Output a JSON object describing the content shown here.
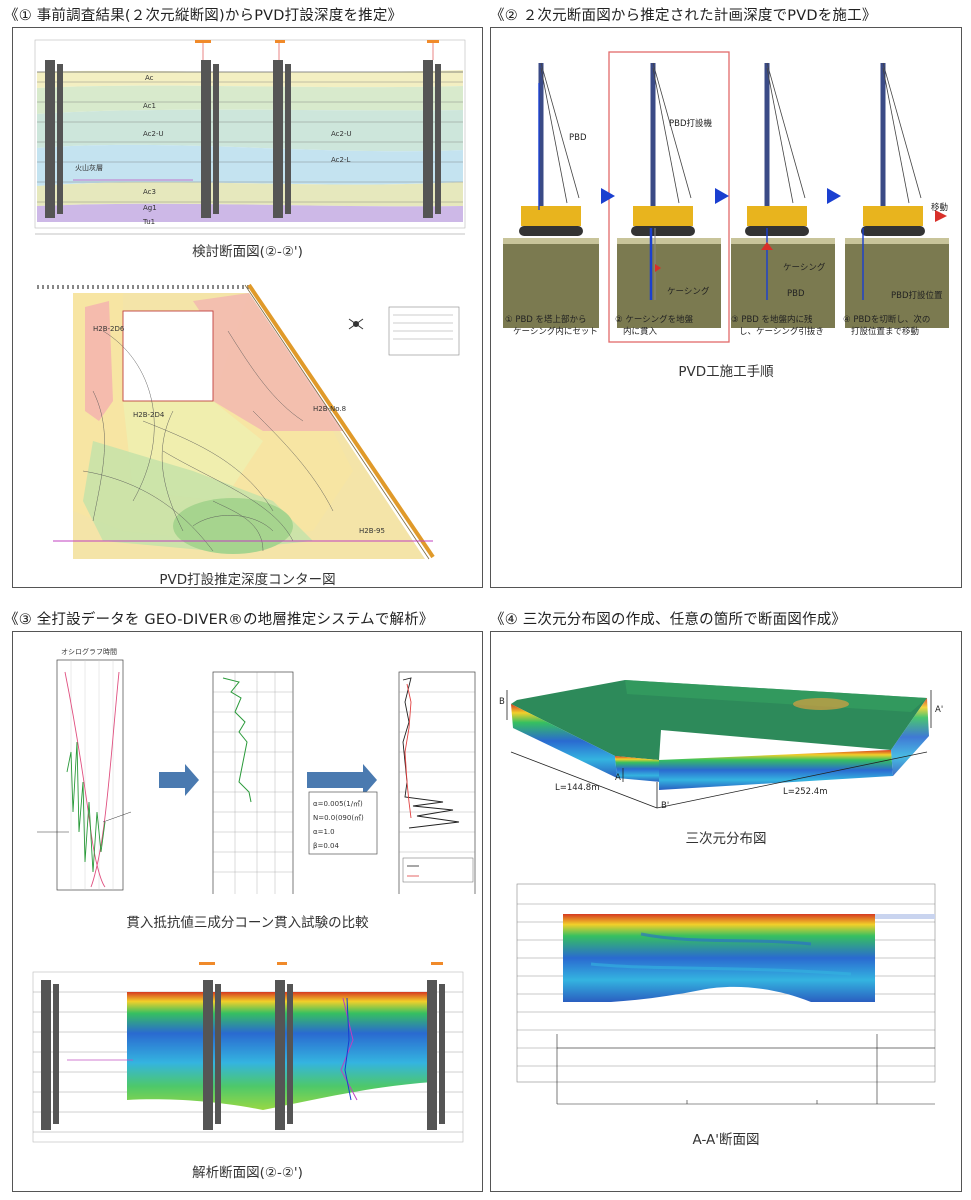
{
  "sections": [
    {
      "heading": "《① 事前調査結果(２次元縦断図)からPVD打設深度を推定》",
      "captions": [
        "検討断面図(②-②')",
        "PVD打設推定深度コンター図"
      ]
    },
    {
      "heading": "《② ２次元断面図から推定された計画深度でPVDを施工》",
      "captions": [
        "PVD工施工手順"
      ],
      "labels": {
        "pbd": "PBD",
        "pbd_machine": "PBD打設機",
        "casing": "ケーシング",
        "casing2": "ケーシング",
        "pbd2": "PBD",
        "pbd_position": "PBD打設位置",
        "move": "移動"
      },
      "steps": [
        "① PBD を塔上部から\nケーシング内にセット",
        "② ケーシングを地盤\n内に貫入",
        "③ PBD を地盤内に残\nし、ケーシング引抜き",
        "④ PBDを切断し、次の\n打設位置まで移動"
      ]
    },
    {
      "heading": "《③ 全打設データを GEO-DIVER®の地層推定システムで解析》",
      "captions": [
        "貫入抵抗値三成分コーン貫入試験の比較",
        "解析断面図(②-②')"
      ],
      "labels": {
        "oscillograph": "オシログラフ",
        "time": "時間"
      },
      "params": [
        "α=0.005(1/㎡)",
        "N=0.0(090(㎡)",
        "α=1.0",
        "β=0.04"
      ]
    },
    {
      "heading": "《④ 三次元分布図の作成、任意の箇所で断面図作成》",
      "captions": [
        "三次元分布図",
        "A-A'断面図"
      ],
      "labels": {
        "L1": "L=144.8m",
        "L2": "L=252.4m",
        "A": "A",
        "A2": "A'",
        "B": "B",
        "B2": "B'"
      }
    }
  ],
  "colors": {
    "strata": [
      "#f0eec4",
      "#d7e8c8",
      "#c9e6d6",
      "#cde3f1",
      "#bfe4ee",
      "#e6d9f0",
      "#e3e8c0",
      "#cbb8e4"
    ],
    "accent_blue": "#1a3fd0",
    "arrow_red": "#d8302a",
    "frame_red": "#e26a6a"
  }
}
